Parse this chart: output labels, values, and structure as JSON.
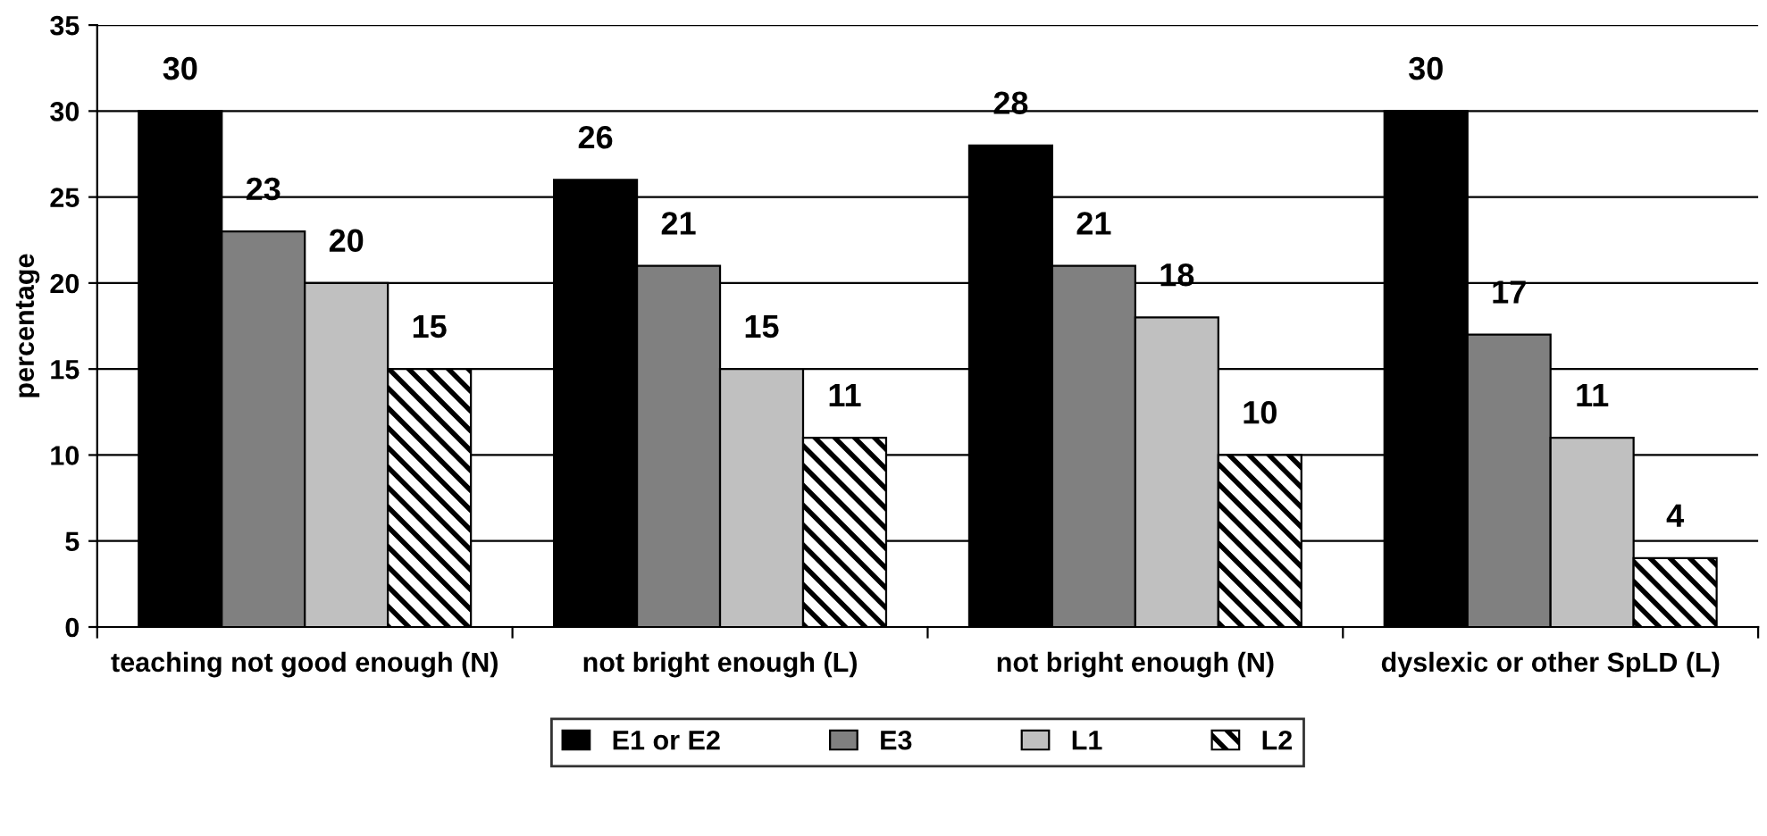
{
  "chart_data": {
    "type": "bar",
    "ylabel": "percentage",
    "categories": [
      "teaching not good enough (N)",
      "not bright enough (L)",
      "not bright enough (N)",
      "dyslexic or other SpLD (L)"
    ],
    "series": [
      {
        "name": "E1 or E2",
        "color": "#000000",
        "values": [
          30,
          26,
          28,
          30
        ]
      },
      {
        "name": "E3",
        "color": "#808080",
        "values": [
          23,
          21,
          21,
          17
        ]
      },
      {
        "name": "L1",
        "color": "#c0c0c0",
        "values": [
          20,
          15,
          18,
          11
        ]
      },
      {
        "name": "L2",
        "color": "#000000",
        "values": [
          15,
          11,
          10,
          4
        ]
      }
    ],
    "ylim": [
      0,
      35
    ],
    "yticks": [
      0,
      5,
      10,
      15,
      20,
      25,
      30,
      35
    ],
    "grid": "y",
    "legend": "bottom",
    "data_labels": true
  }
}
